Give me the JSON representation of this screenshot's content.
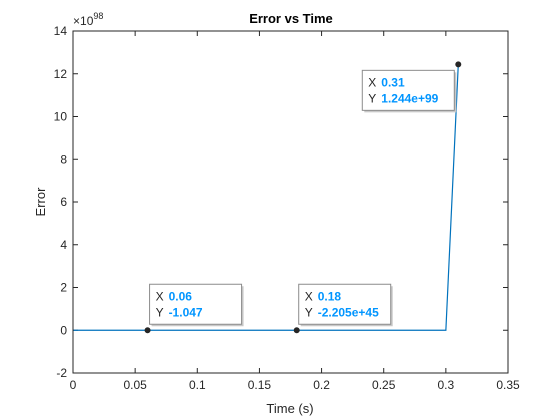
{
  "chart_data": {
    "type": "line",
    "title": "Error vs Time",
    "xlabel": "Time (s)",
    "ylabel": "Error",
    "y_exponent_base": "10",
    "y_exponent_power": "98",
    "xlim": [
      0,
      0.35
    ],
    "ylim": [
      -2,
      14
    ],
    "x_ticks": [
      0,
      0.05,
      0.1,
      0.15,
      0.2,
      0.25,
      0.3,
      0.35
    ],
    "x_tick_labels": [
      "0",
      "0.05",
      "0.1",
      "0.15",
      "0.2",
      "0.25",
      "0.3",
      "0.35"
    ],
    "y_ticks": [
      -2,
      0,
      2,
      4,
      6,
      8,
      10,
      12,
      14
    ],
    "y_tick_labels": [
      "-2",
      "0",
      "2",
      "4",
      "6",
      "8",
      "10",
      "12",
      "14"
    ],
    "grid": false,
    "series": [
      {
        "x": [
          0,
          0.06,
          0.18,
          0.3,
          0.31
        ],
        "y": [
          0,
          0,
          0,
          0,
          12.44
        ],
        "color": "#0072BD"
      }
    ],
    "datatips": [
      {
        "x_key": "X",
        "y_key": "Y",
        "x_label": "0.06",
        "y_label": "-1.047",
        "x": 0.06,
        "y": 0
      },
      {
        "x_key": "X",
        "y_key": "Y",
        "x_label": "0.18",
        "y_label": "-2.205e+45",
        "x": 0.18,
        "y": 0
      },
      {
        "x_key": "X",
        "y_key": "Y",
        "x_label": "0.31",
        "y_label": "1.244e+99",
        "x": 0.31,
        "y": 12.44
      }
    ],
    "colors": {
      "line": "#0072BD",
      "tip_value": "#0095FF",
      "axes": "#262626"
    }
  }
}
